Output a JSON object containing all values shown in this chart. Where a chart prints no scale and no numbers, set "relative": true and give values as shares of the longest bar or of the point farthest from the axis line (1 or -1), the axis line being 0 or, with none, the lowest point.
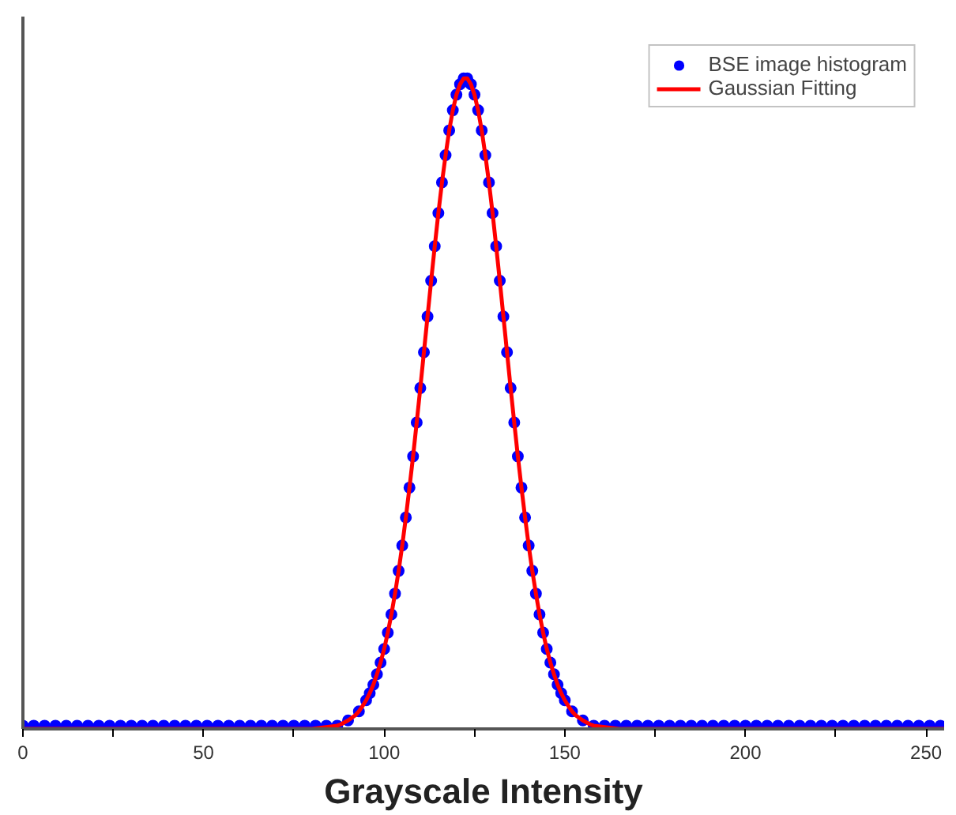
{
  "chart_data": {
    "type": "scatter",
    "xlabel": "Grayscale Intensity",
    "relative": true,
    "grid": false,
    "legend": "top right",
    "marker": "circle",
    "xlim": [
      0,
      255
    ],
    "xticks": [
      0,
      {
        "value": 25,
        "label": null
      },
      50,
      {
        "value": 75,
        "label": null
      },
      100,
      {
        "value": 125,
        "label": null
      },
      150,
      {
        "value": 175,
        "label": null
      },
      200,
      {
        "value": 225,
        "label": null
      },
      250
    ],
    "series": [
      {
        "name": "BSE image histogram",
        "color": "#0000ff",
        "x": [
          0,
          3,
          6,
          9,
          12,
          15,
          18,
          21,
          24,
          27,
          30,
          33,
          36,
          39,
          42,
          45,
          48,
          51,
          54,
          57,
          60,
          63,
          66,
          69,
          72,
          75,
          78,
          81,
          84,
          87,
          90,
          93,
          95,
          96,
          97,
          98,
          99,
          100,
          101,
          102,
          103,
          104,
          105,
          106,
          107,
          108,
          109,
          110,
          111,
          112,
          113,
          114,
          115,
          116,
          117,
          118,
          119,
          120,
          121,
          122,
          123,
          124,
          125,
          126,
          127,
          128,
          129,
          130,
          131,
          132,
          133,
          134,
          135,
          136,
          137,
          138,
          139,
          140,
          141,
          142,
          143,
          144,
          145,
          146,
          147,
          148,
          149,
          150,
          152,
          155,
          158,
          161,
          164,
          167,
          170,
          173,
          176,
          179,
          182,
          185,
          188,
          191,
          194,
          197,
          200,
          203,
          206,
          209,
          212,
          215,
          218,
          221,
          224,
          227,
          230,
          233,
          236,
          239,
          242,
          245,
          248,
          251,
          254
        ],
        "values": [
          0.005,
          0.005,
          0.005,
          0.005,
          0.005,
          0.005,
          0.005,
          0.005,
          0.005,
          0.005,
          0.005,
          0.005,
          0.005,
          0.005,
          0.005,
          0.005,
          0.005,
          0.005,
          0.005,
          0.005,
          0.005,
          0.005,
          0.005,
          0.005,
          0.005,
          0.005,
          0.005,
          0.005,
          0.005,
          0.005,
          0.013,
          0.027,
          0.044,
          0.055,
          0.068,
          0.084,
          0.102,
          0.123,
          0.148,
          0.176,
          0.208,
          0.243,
          0.282,
          0.325,
          0.371,
          0.419,
          0.471,
          0.524,
          0.579,
          0.634,
          0.689,
          0.742,
          0.793,
          0.84,
          0.882,
          0.92,
          0.951,
          0.975,
          0.991,
          1.0,
          1.0,
          0.991,
          0.975,
          0.951,
          0.92,
          0.882,
          0.84,
          0.793,
          0.742,
          0.689,
          0.634,
          0.579,
          0.524,
          0.471,
          0.419,
          0.371,
          0.325,
          0.282,
          0.243,
          0.208,
          0.176,
          0.148,
          0.123,
          0.102,
          0.084,
          0.068,
          0.055,
          0.044,
          0.027,
          0.013,
          0.005,
          0.005,
          0.005,
          0.005,
          0.005,
          0.005,
          0.005,
          0.005,
          0.005,
          0.005,
          0.005,
          0.005,
          0.005,
          0.005,
          0.005,
          0.005,
          0.005,
          0.005,
          0.005,
          0.005,
          0.005,
          0.005,
          0.005,
          0.005,
          0.005,
          0.005,
          0.005,
          0.005,
          0.005,
          0.005,
          0.005,
          0.005,
          0.005
        ]
      },
      {
        "name": "Gaussian Fitting",
        "type": "line",
        "color": "#ff0000",
        "line_style": "solid",
        "marker": "none",
        "x": [
          0,
          80,
          87,
          88,
          89,
          90,
          91,
          92,
          93,
          94,
          95,
          96,
          97,
          98,
          99,
          100,
          101,
          102,
          103,
          104,
          105,
          106,
          107,
          108,
          109,
          110,
          111,
          112,
          113,
          114,
          115,
          116,
          117,
          118,
          119,
          120,
          121,
          122,
          123,
          124,
          125,
          126,
          127,
          128,
          129,
          130,
          131,
          132,
          133,
          134,
          135,
          136,
          137,
          138,
          139,
          140,
          141,
          142,
          143,
          144,
          145,
          146,
          147,
          148,
          149,
          150,
          151,
          152,
          153,
          154,
          155,
          156,
          157,
          158,
          165,
          255
        ],
        "values": [
          0,
          0,
          0.005,
          0.007,
          0.01,
          0.013,
          0.017,
          0.021,
          0.027,
          0.035,
          0.044,
          0.055,
          0.068,
          0.084,
          0.102,
          0.123,
          0.148,
          0.176,
          0.208,
          0.243,
          0.282,
          0.325,
          0.371,
          0.419,
          0.471,
          0.524,
          0.579,
          0.634,
          0.689,
          0.742,
          0.793,
          0.84,
          0.882,
          0.92,
          0.951,
          0.975,
          0.991,
          1.0,
          1.0,
          0.991,
          0.975,
          0.951,
          0.92,
          0.882,
          0.84,
          0.793,
          0.742,
          0.689,
          0.634,
          0.579,
          0.524,
          0.471,
          0.419,
          0.371,
          0.325,
          0.282,
          0.243,
          0.208,
          0.176,
          0.148,
          0.123,
          0.102,
          0.084,
          0.068,
          0.055,
          0.044,
          0.035,
          0.027,
          0.021,
          0.017,
          0.013,
          0.01,
          0.007,
          0.005,
          0,
          0
        ]
      }
    ]
  }
}
